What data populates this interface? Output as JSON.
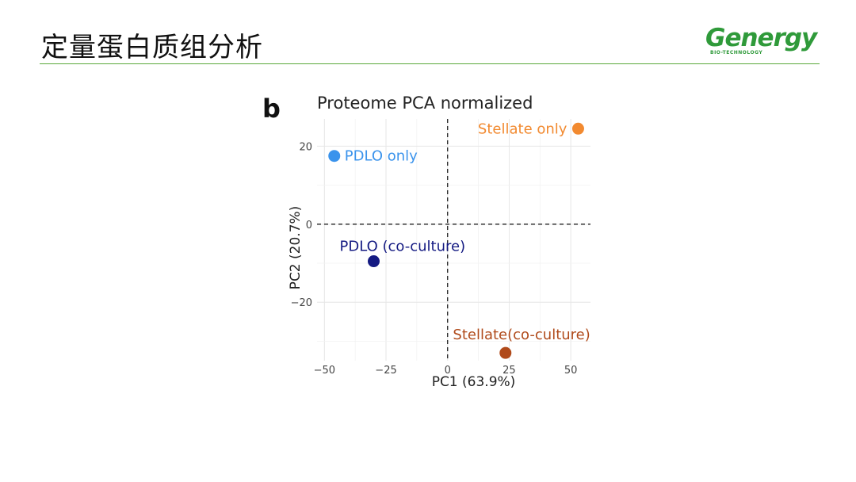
{
  "slide": {
    "title": "定量蛋白质组分析",
    "logo_text": "Genergy",
    "logo_subtext": "BIO-TECHNOLOGY",
    "accent_color": "#5aa83a"
  },
  "chart_data": {
    "type": "scatter",
    "panel_label": "b",
    "title": "Proteome PCA normalized",
    "xlabel": "PC1 (63.9%)",
    "ylabel": "PC2 (20.7%)",
    "xlim": [
      -53,
      58
    ],
    "ylim": [
      -35,
      27
    ],
    "xticks": [
      -50,
      -25,
      0,
      25,
      50
    ],
    "xtick_labels": [
      "−50",
      "−25",
      "0",
      "25",
      "50"
    ],
    "yticks": [
      -20,
      0,
      20
    ],
    "ytick_labels": [
      "−20",
      "0",
      "20"
    ],
    "grid": true,
    "reference_lines": {
      "x": 0,
      "y": 0,
      "style": "dashed"
    },
    "points": [
      {
        "label": "PDLO only",
        "x": -46,
        "y": 17.5,
        "color": "#3a93ec"
      },
      {
        "label": "Stellate only",
        "x": 53,
        "y": 24.5,
        "color": "#f28a30"
      },
      {
        "label": "PDLO (co-culture)",
        "x": -30,
        "y": -9.5,
        "color": "#141a82"
      },
      {
        "label": "Stellate(co-culture)",
        "x": 23.5,
        "y": -33,
        "color": "#b04a1a"
      }
    ]
  }
}
